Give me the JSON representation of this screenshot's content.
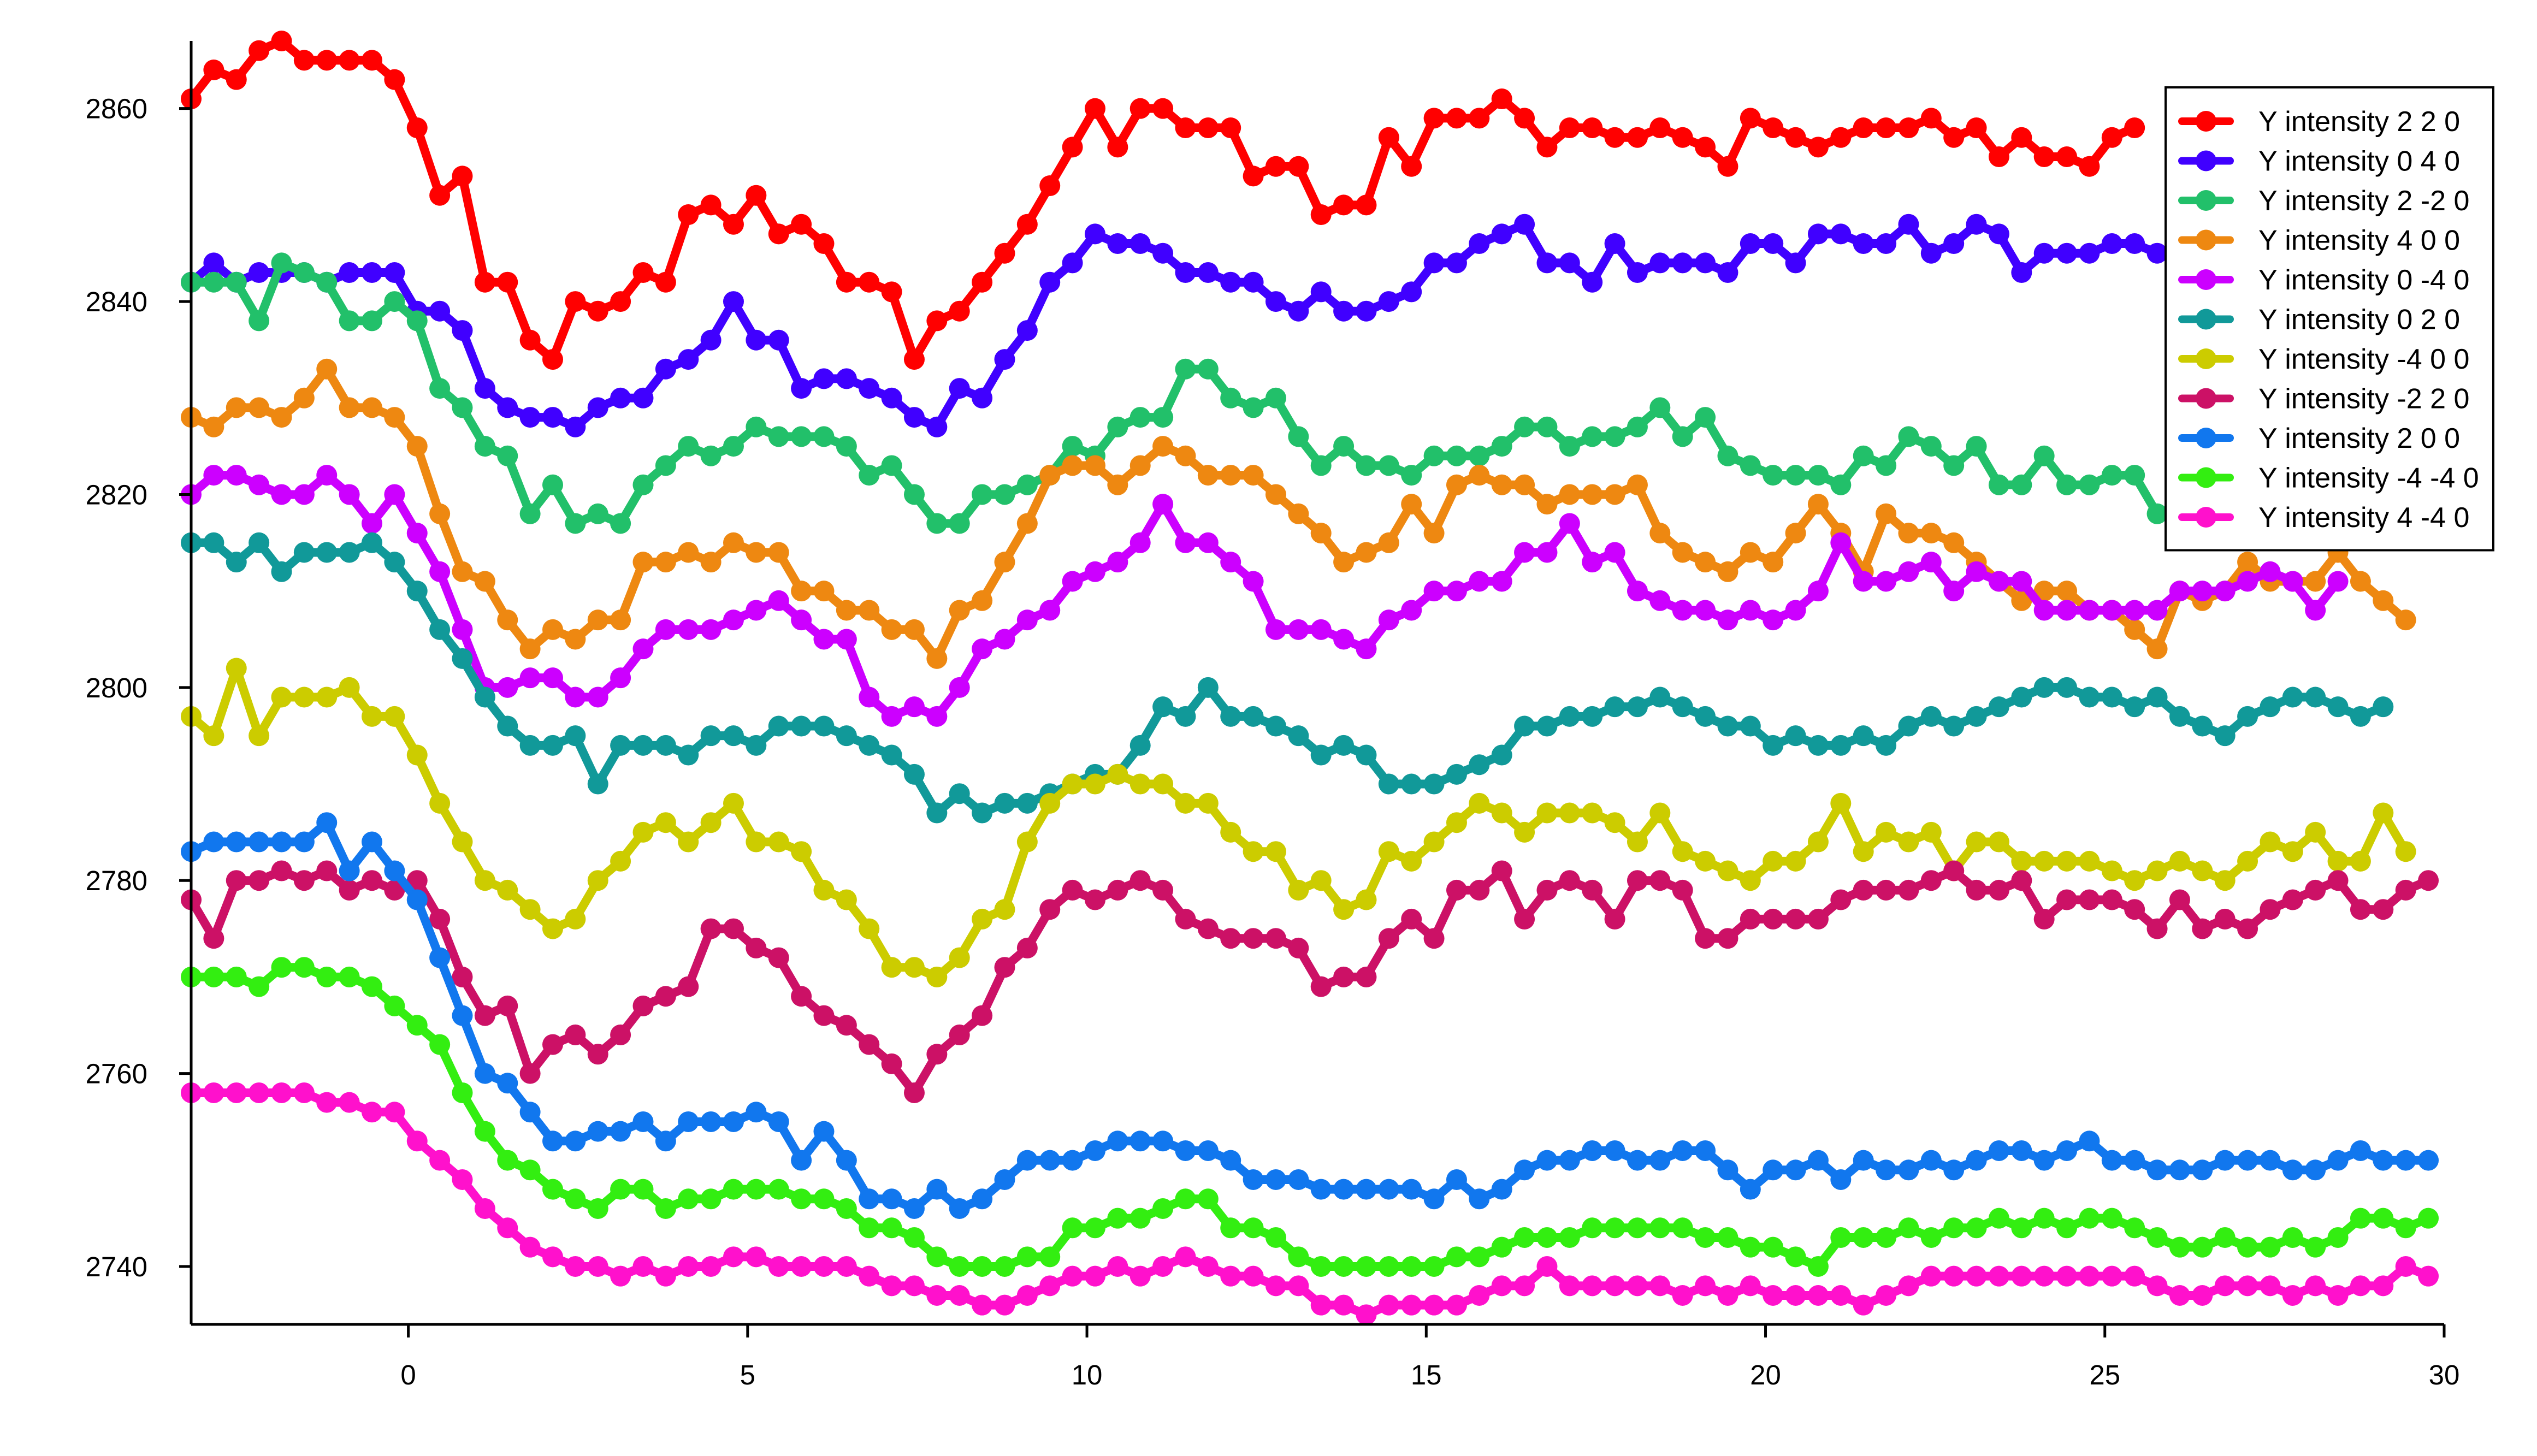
{
  "chart_data": {
    "type": "line",
    "title": "",
    "xlabel": "",
    "ylabel": "",
    "xlim": [
      -3.2,
      30
    ],
    "ylim": [
      2734,
      2867
    ],
    "xticks": [
      0,
      5,
      10,
      15,
      20,
      25,
      30
    ],
    "yticks": [
      2740,
      2760,
      2780,
      2800,
      2820,
      2840,
      2860
    ],
    "grid": false,
    "legend_position": "top-right",
    "x_start": -3.2,
    "x_step": 0.333,
    "series": [
      {
        "name": "Y intensity 2 2 0",
        "color": "#ff0000",
        "values": [
          2861,
          2864,
          2863,
          2866,
          2867,
          2865,
          2865,
          2865,
          2865,
          2863,
          2858,
          2851,
          2853,
          2842,
          2842,
          2836,
          2834,
          2840,
          2839,
          2840,
          2843,
          2842,
          2849,
          2850,
          2848,
          2851,
          2847,
          2848,
          2846,
          2842,
          2842,
          2841,
          2834,
          2838,
          2839,
          2842,
          2845,
          2848,
          2852,
          2856,
          2860,
          2856,
          2860,
          2860,
          2858,
          2858,
          2858,
          2853,
          2854,
          2854,
          2849,
          2850,
          2850,
          2857,
          2854,
          2859,
          2859,
          2859,
          2861,
          2859,
          2856,
          2858,
          2858,
          2857,
          2857,
          2858,
          2857,
          2856,
          2854,
          2859,
          2858,
          2857,
          2856,
          2857,
          2858,
          2858,
          2858,
          2859,
          2857,
          2858,
          2855,
          2857,
          2855,
          2855,
          2854,
          2857,
          2858
        ]
      },
      {
        "name": "Y intensity 0 4 0",
        "color": "#4000ff",
        "values": [
          2842,
          2844,
          2842,
          2843,
          2843,
          2843,
          2842,
          2843,
          2843,
          2843,
          2839,
          2839,
          2837,
          2831,
          2829,
          2828,
          2828,
          2827,
          2829,
          2830,
          2830,
          2833,
          2834,
          2836,
          2840,
          2836,
          2836,
          2831,
          2832,
          2832,
          2831,
          2830,
          2828,
          2827,
          2831,
          2830,
          2834,
          2837,
          2842,
          2844,
          2847,
          2846,
          2846,
          2845,
          2843,
          2843,
          2842,
          2842,
          2840,
          2839,
          2841,
          2839,
          2839,
          2840,
          2841,
          2844,
          2844,
          2846,
          2847,
          2848,
          2844,
          2844,
          2842,
          2846,
          2843,
          2844,
          2844,
          2844,
          2843,
          2846,
          2846,
          2844,
          2847,
          2847,
          2846,
          2846,
          2848,
          2845,
          2846,
          2848,
          2847,
          2843,
          2845,
          2845,
          2845,
          2846,
          2846,
          2845
        ]
      },
      {
        "name": "Y intensity 2 -2 0",
        "color": "#22c06a",
        "values": [
          2842,
          2842,
          2842,
          2838,
          2844,
          2843,
          2842,
          2838,
          2838,
          2840,
          2838,
          2831,
          2829,
          2825,
          2824,
          2818,
          2821,
          2817,
          2818,
          2817,
          2821,
          2823,
          2825,
          2824,
          2825,
          2827,
          2826,
          2826,
          2826,
          2825,
          2822,
          2823,
          2820,
          2817,
          2817,
          2820,
          2820,
          2821,
          2822,
          2825,
          2824,
          2827,
          2828,
          2828,
          2833,
          2833,
          2830,
          2829,
          2830,
          2826,
          2823,
          2825,
          2823,
          2823,
          2822,
          2824,
          2824,
          2824,
          2825,
          2827,
          2827,
          2825,
          2826,
          2826,
          2827,
          2829,
          2826,
          2828,
          2824,
          2823,
          2822,
          2822,
          2822,
          2821,
          2824,
          2823,
          2826,
          2825,
          2823,
          2825,
          2821,
          2821,
          2824,
          2821,
          2821,
          2822,
          2822,
          2818,
          2818,
          2820
        ]
      },
      {
        "name": "Y intensity 4 0 0",
        "color": "#ee8811",
        "values": [
          2828,
          2827,
          2829,
          2829,
          2828,
          2830,
          2833,
          2829,
          2829,
          2828,
          2825,
          2818,
          2812,
          2811,
          2807,
          2804,
          2806,
          2805,
          2807,
          2807,
          2813,
          2813,
          2814,
          2813,
          2815,
          2814,
          2814,
          2810,
          2810,
          2808,
          2808,
          2806,
          2806,
          2803,
          2808,
          2809,
          2813,
          2817,
          2822,
          2823,
          2823,
          2821,
          2823,
          2825,
          2824,
          2822,
          2822,
          2822,
          2820,
          2818,
          2816,
          2813,
          2814,
          2815,
          2819,
          2816,
          2821,
          2822,
          2821,
          2821,
          2819,
          2820,
          2820,
          2820,
          2821,
          2816,
          2814,
          2813,
          2812,
          2814,
          2813,
          2816,
          2819,
          2816,
          2812,
          2818,
          2816,
          2816,
          2815,
          2813,
          2811,
          2809,
          2810,
          2810,
          2808,
          2808,
          2806,
          2804,
          2810,
          2809,
          2810,
          2813,
          2811,
          2811,
          2811,
          2814,
          2811,
          2809,
          2807
        ]
      },
      {
        "name": "Y intensity 0 -4 0",
        "color": "#cc00ff",
        "values": [
          2820,
          2822,
          2822,
          2821,
          2820,
          2820,
          2822,
          2820,
          2817,
          2820,
          2816,
          2812,
          2806,
          2800,
          2800,
          2801,
          2801,
          2799,
          2799,
          2801,
          2804,
          2806,
          2806,
          2806,
          2807,
          2808,
          2809,
          2807,
          2805,
          2805,
          2799,
          2797,
          2798,
          2797,
          2800,
          2804,
          2805,
          2807,
          2808,
          2811,
          2812,
          2813,
          2815,
          2819,
          2815,
          2815,
          2813,
          2811,
          2806,
          2806,
          2806,
          2805,
          2804,
          2807,
          2808,
          2810,
          2810,
          2811,
          2811,
          2814,
          2814,
          2817,
          2813,
          2814,
          2810,
          2809,
          2808,
          2808,
          2807,
          2808,
          2807,
          2808,
          2810,
          2815,
          2811,
          2811,
          2812,
          2813,
          2810,
          2812,
          2811,
          2811,
          2808,
          2808,
          2808,
          2808,
          2808,
          2808,
          2810,
          2810,
          2810,
          2811,
          2812,
          2811,
          2808,
          2811
        ]
      },
      {
        "name": "Y intensity 0 2 0",
        "color": "#119999",
        "values": [
          2815,
          2815,
          2813,
          2815,
          2812,
          2814,
          2814,
          2814,
          2815,
          2813,
          2810,
          2806,
          2803,
          2799,
          2796,
          2794,
          2794,
          2795,
          2790,
          2794,
          2794,
          2794,
          2793,
          2795,
          2795,
          2794,
          2796,
          2796,
          2796,
          2795,
          2794,
          2793,
          2791,
          2787,
          2789,
          2787,
          2788,
          2788,
          2789,
          2790,
          2791,
          2791,
          2794,
          2798,
          2797,
          2800,
          2797,
          2797,
          2796,
          2795,
          2793,
          2794,
          2793,
          2790,
          2790,
          2790,
          2791,
          2792,
          2793,
          2796,
          2796,
          2797,
          2797,
          2798,
          2798,
          2799,
          2798,
          2797,
          2796,
          2796,
          2794,
          2795,
          2794,
          2794,
          2795,
          2794,
          2796,
          2797,
          2796,
          2797,
          2798,
          2799,
          2800,
          2800,
          2799,
          2799,
          2798,
          2799,
          2797,
          2796,
          2795,
          2797,
          2798,
          2799,
          2799,
          2798,
          2797,
          2798
        ]
      },
      {
        "name": "Y intensity -4 0 0",
        "color": "#cccc00",
        "values": [
          2797,
          2795,
          2802,
          2795,
          2799,
          2799,
          2799,
          2800,
          2797,
          2797,
          2793,
          2788,
          2784,
          2780,
          2779,
          2777,
          2775,
          2776,
          2780,
          2782,
          2785,
          2786,
          2784,
          2786,
          2788,
          2784,
          2784,
          2783,
          2779,
          2778,
          2775,
          2771,
          2771,
          2770,
          2772,
          2776,
          2777,
          2784,
          2788,
          2790,
          2790,
          2791,
          2790,
          2790,
          2788,
          2788,
          2785,
          2783,
          2783,
          2779,
          2780,
          2777,
          2778,
          2783,
          2782,
          2784,
          2786,
          2788,
          2787,
          2785,
          2787,
          2787,
          2787,
          2786,
          2784,
          2787,
          2783,
          2782,
          2781,
          2780,
          2782,
          2782,
          2784,
          2788,
          2783,
          2785,
          2784,
          2785,
          2781,
          2784,
          2784,
          2782,
          2782,
          2782,
          2782,
          2781,
          2780,
          2781,
          2782,
          2781,
          2780,
          2782,
          2784,
          2783,
          2785,
          2782,
          2782,
          2787,
          2783
        ]
      },
      {
        "name": "Y intensity -2 2 0",
        "color": "#cc1166",
        "values": [
          2778,
          2774,
          2780,
          2780,
          2781,
          2780,
          2781,
          2779,
          2780,
          2779,
          2780,
          2776,
          2770,
          2766,
          2767,
          2760,
          2763,
          2764,
          2762,
          2764,
          2767,
          2768,
          2769,
          2775,
          2775,
          2773,
          2772,
          2768,
          2766,
          2765,
          2763,
          2761,
          2758,
          2762,
          2764,
          2766,
          2771,
          2773,
          2777,
          2779,
          2778,
          2779,
          2780,
          2779,
          2776,
          2775,
          2774,
          2774,
          2774,
          2773,
          2769,
          2770,
          2770,
          2774,
          2776,
          2774,
          2779,
          2779,
          2781,
          2776,
          2779,
          2780,
          2779,
          2776,
          2780,
          2780,
          2779,
          2774,
          2774,
          2776,
          2776,
          2776,
          2776,
          2778,
          2779,
          2779,
          2779,
          2780,
          2781,
          2779,
          2779,
          2780,
          2776,
          2778,
          2778,
          2778,
          2777,
          2775,
          2778,
          2775,
          2776,
          2775,
          2777,
          2778,
          2779,
          2780,
          2777,
          2777,
          2779,
          2780,
          2780,
          2780
        ]
      },
      {
        "name": "Y intensity 2 0 0",
        "color": "#1177ee",
        "values": [
          2783,
          2784,
          2784,
          2784,
          2784,
          2784,
          2786,
          2781,
          2784,
          2781,
          2778,
          2772,
          2766,
          2760,
          2759,
          2756,
          2753,
          2753,
          2754,
          2754,
          2755,
          2753,
          2755,
          2755,
          2755,
          2756,
          2755,
          2751,
          2754,
          2751,
          2747,
          2747,
          2746,
          2748,
          2746,
          2747,
          2749,
          2751,
          2751,
          2751,
          2752,
          2753,
          2753,
          2753,
          2752,
          2752,
          2751,
          2749,
          2749,
          2749,
          2748,
          2748,
          2748,
          2748,
          2748,
          2747,
          2749,
          2747,
          2748,
          2750,
          2751,
          2751,
          2752,
          2752,
          2751,
          2751,
          2752,
          2752,
          2750,
          2748,
          2750,
          2750,
          2751,
          2749,
          2751,
          2750,
          2750,
          2751,
          2750,
          2751,
          2752,
          2752,
          2751,
          2752,
          2753,
          2751,
          2751,
          2750,
          2750,
          2750,
          2751,
          2751,
          2751,
          2750,
          2750,
          2751,
          2752,
          2751,
          2751,
          2751
        ]
      },
      {
        "name": "Y intensity -4 -4 0",
        "color": "#33ee11",
        "values": [
          2770,
          2770,
          2770,
          2769,
          2771,
          2771,
          2770,
          2770,
          2769,
          2767,
          2765,
          2763,
          2758,
          2754,
          2751,
          2750,
          2748,
          2747,
          2746,
          2748,
          2748,
          2746,
          2747,
          2747,
          2748,
          2748,
          2748,
          2747,
          2747,
          2746,
          2744,
          2744,
          2743,
          2741,
          2740,
          2740,
          2740,
          2741,
          2741,
          2744,
          2744,
          2745,
          2745,
          2746,
          2747,
          2747,
          2744,
          2744,
          2743,
          2741,
          2740,
          2740,
          2740,
          2740,
          2740,
          2740,
          2741,
          2741,
          2742,
          2743,
          2743,
          2743,
          2744,
          2744,
          2744,
          2744,
          2744,
          2743,
          2743,
          2742,
          2742,
          2741,
          2740,
          2743,
          2743,
          2743,
          2744,
          2743,
          2744,
          2744,
          2745,
          2744,
          2745,
          2744,
          2745,
          2745,
          2744,
          2743,
          2742,
          2742,
          2743,
          2742,
          2742,
          2743,
          2742,
          2743,
          2745,
          2745,
          2744,
          2745,
          2745
        ]
      },
      {
        "name": "Y intensity 4 -4 0",
        "color": "#ff11cc",
        "values": [
          2758,
          2758,
          2758,
          2758,
          2758,
          2758,
          2757,
          2757,
          2756,
          2756,
          2753,
          2751,
          2749,
          2746,
          2744,
          2742,
          2741,
          2740,
          2740,
          2739,
          2740,
          2739,
          2740,
          2740,
          2741,
          2741,
          2740,
          2740,
          2740,
          2740,
          2739,
          2738,
          2738,
          2737,
          2737,
          2736,
          2736,
          2737,
          2738,
          2739,
          2739,
          2740,
          2739,
          2740,
          2741,
          2740,
          2739,
          2739,
          2738,
          2738,
          2736,
          2736,
          2735,
          2736,
          2736,
          2736,
          2736,
          2737,
          2738,
          2738,
          2740,
          2738,
          2738,
          2738,
          2738,
          2738,
          2737,
          2738,
          2737,
          2738,
          2737,
          2737,
          2737,
          2737,
          2736,
          2737,
          2738,
          2739,
          2739,
          2739,
          2739,
          2739,
          2739,
          2739,
          2739,
          2739,
          2739,
          2738,
          2737,
          2737,
          2738,
          2738,
          2738,
          2737,
          2738,
          2737,
          2738,
          2738,
          2740,
          2739,
          2740
        ]
      }
    ]
  }
}
